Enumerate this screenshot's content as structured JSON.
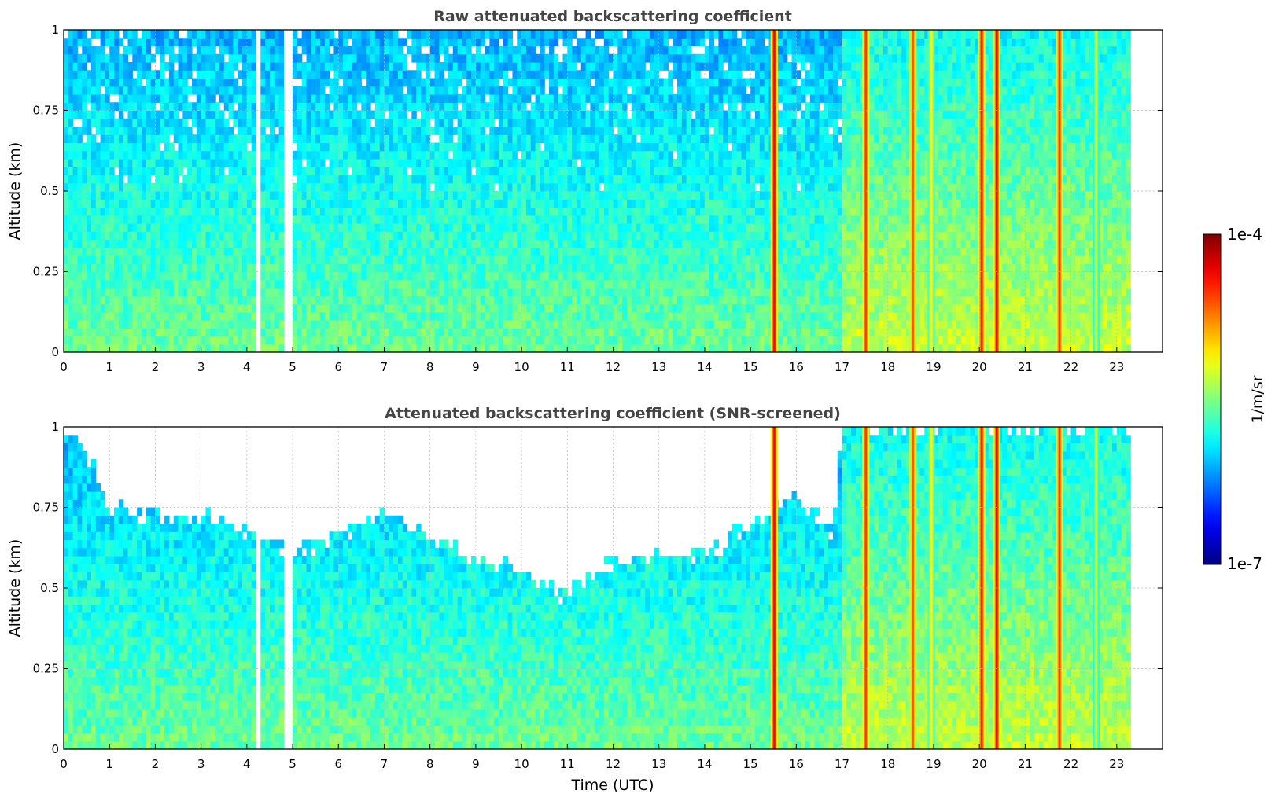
{
  "chart_data": [
    {
      "type": "heatmap",
      "title": "Raw attenuated backscattering coefficient",
      "xlabel": "",
      "ylabel": "Altitude (km)",
      "xlim": [
        0,
        24
      ],
      "ylim": [
        0,
        1
      ],
      "x_ticks": [
        "0",
        "1",
        "2",
        "3",
        "4",
        "5",
        "6",
        "7",
        "8",
        "9",
        "10",
        "11",
        "12",
        "13",
        "14",
        "15",
        "16",
        "17",
        "18",
        "19",
        "20",
        "21",
        "22",
        "23"
      ],
      "y_ticks": [
        "0",
        "0.25",
        "0.5",
        "0.75",
        "1"
      ],
      "grid": true,
      "data_end_time": 23.3,
      "colormap": "jet",
      "value_log_range": [
        -7,
        -4
      ],
      "features": {
        "gaps": [
          [
            4.2,
            4.3
          ],
          [
            4.85,
            5.0
          ]
        ],
        "columns": [
          {
            "time": 15.52,
            "log_peak": -4.3
          },
          {
            "time": 17.52,
            "log_peak": -4.5
          },
          {
            "time": 18.55,
            "log_peak": -4.6
          },
          {
            "time": 18.95,
            "log_peak": -5.1
          },
          {
            "time": 20.05,
            "log_peak": -4.4
          },
          {
            "time": 20.38,
            "log_peak": -4.3
          },
          {
            "time": 21.75,
            "log_peak": -4.5
          },
          {
            "time": 22.55,
            "log_peak": -5.3
          }
        ]
      }
    },
    {
      "type": "heatmap",
      "title": "Attenuated backscattering coefficient (SNR-screened)",
      "xlabel": "Time (UTC)",
      "ylabel": "Altitude (km)",
      "xlim": [
        0,
        24
      ],
      "ylim": [
        0,
        1
      ],
      "x_ticks": [
        "0",
        "1",
        "2",
        "3",
        "4",
        "5",
        "6",
        "7",
        "8",
        "9",
        "10",
        "11",
        "12",
        "13",
        "14",
        "15",
        "16",
        "17",
        "18",
        "19",
        "20",
        "21",
        "22",
        "23"
      ],
      "y_ticks": [
        "0",
        "0.25",
        "0.5",
        "0.75",
        "1"
      ],
      "grid": true,
      "data_end_time": 23.3,
      "colormap": "jet",
      "value_log_range": [
        -7,
        -4
      ],
      "features": {
        "gaps": [
          [
            4.2,
            4.3
          ],
          [
            4.85,
            5.0
          ]
        ],
        "screened_top_km": [
          [
            0,
            0.99
          ],
          [
            0.6,
            0.9
          ],
          [
            1.0,
            0.74
          ],
          [
            2.0,
            0.72
          ],
          [
            3.0,
            0.72
          ],
          [
            4.0,
            0.68
          ],
          [
            5.0,
            0.6
          ],
          [
            6.0,
            0.66
          ],
          [
            7.0,
            0.75
          ],
          [
            8.0,
            0.65
          ],
          [
            9.0,
            0.6
          ],
          [
            10.0,
            0.55
          ],
          [
            11.0,
            0.48
          ],
          [
            12.0,
            0.58
          ],
          [
            13.0,
            0.62
          ],
          [
            14.0,
            0.6
          ],
          [
            15.0,
            0.7
          ],
          [
            16.0,
            0.78
          ],
          [
            16.8,
            0.68
          ],
          [
            17.0,
            1.0
          ],
          [
            23.3,
            1.0
          ]
        ]
      }
    }
  ],
  "colorbar": {
    "top_label": "1e-4",
    "bottom_label": "1e-7",
    "label": "1/m/sr"
  }
}
